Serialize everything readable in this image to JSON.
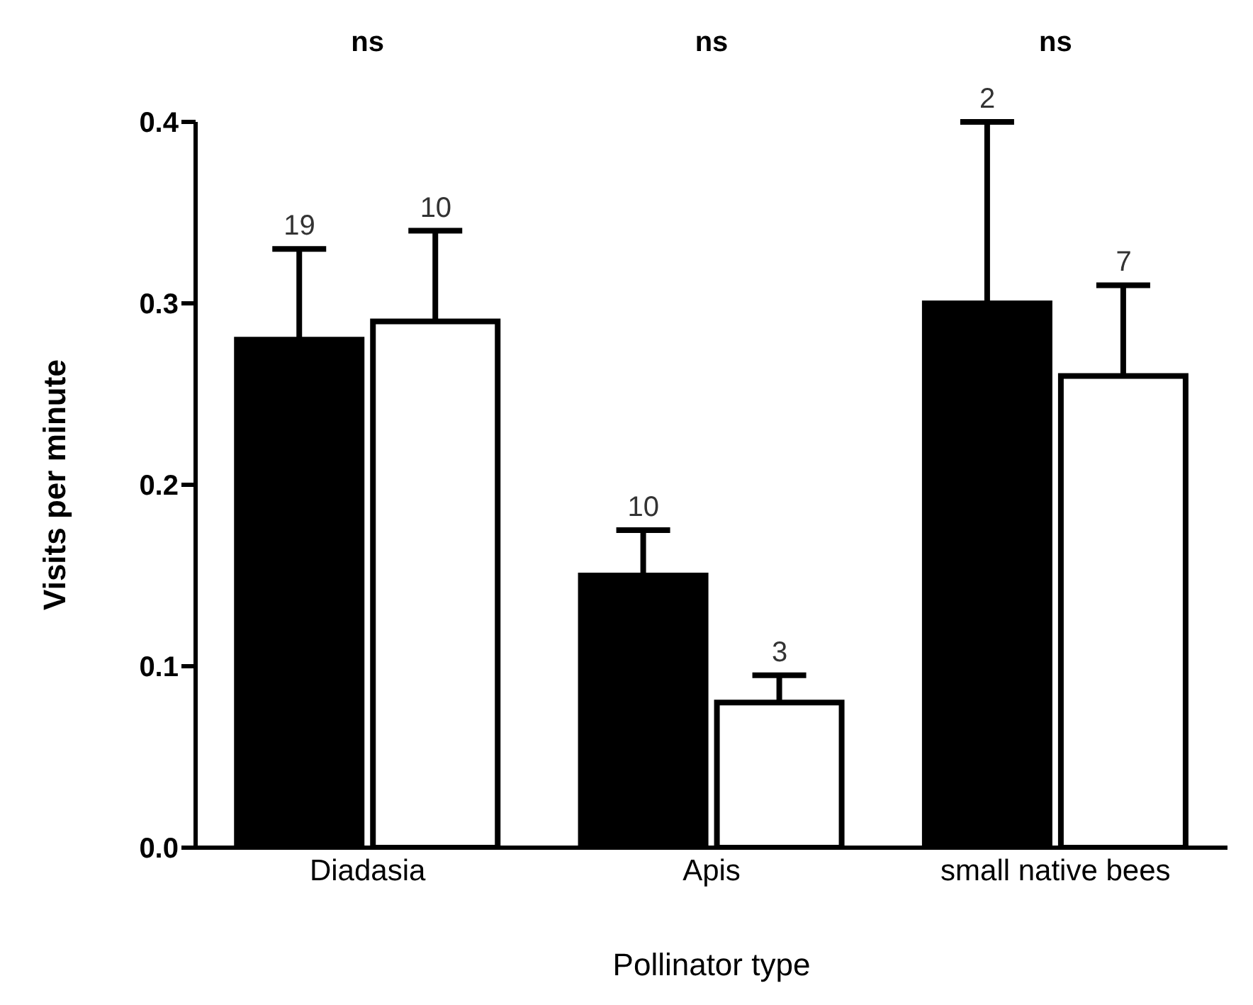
{
  "chart_data": {
    "type": "bar",
    "xlabel": "Pollinator type",
    "ylabel": "Visits per minute",
    "categories": [
      "Diadasia",
      "Apis",
      "small native bees"
    ],
    "series": [
      {
        "color": "#000000",
        "values": [
          0.28,
          0.15,
          0.3
        ],
        "errors": [
          0.05,
          0.025,
          0.1
        ]
      },
      {
        "color": "#ffffff",
        "values": [
          0.29,
          0.08,
          0.26
        ],
        "errors": [
          0.05,
          0.015,
          0.05
        ]
      }
    ],
    "ylim": [
      0,
      0.4
    ],
    "yticks": [
      {
        "value": 0,
        "label": "0.0"
      },
      {
        "value": 0.1,
        "label": "0.1"
      },
      {
        "value": 0.2,
        "label": "0.2"
      },
      {
        "value": 0.3,
        "label": "0.3"
      },
      {
        "value": 0.4,
        "label": "0.4"
      }
    ],
    "annotations": [
      "ns",
      "ns",
      "ns",
      "19",
      "10",
      "10",
      "3",
      "2",
      "7"
    ],
    "grid": false,
    "legend": false
  }
}
